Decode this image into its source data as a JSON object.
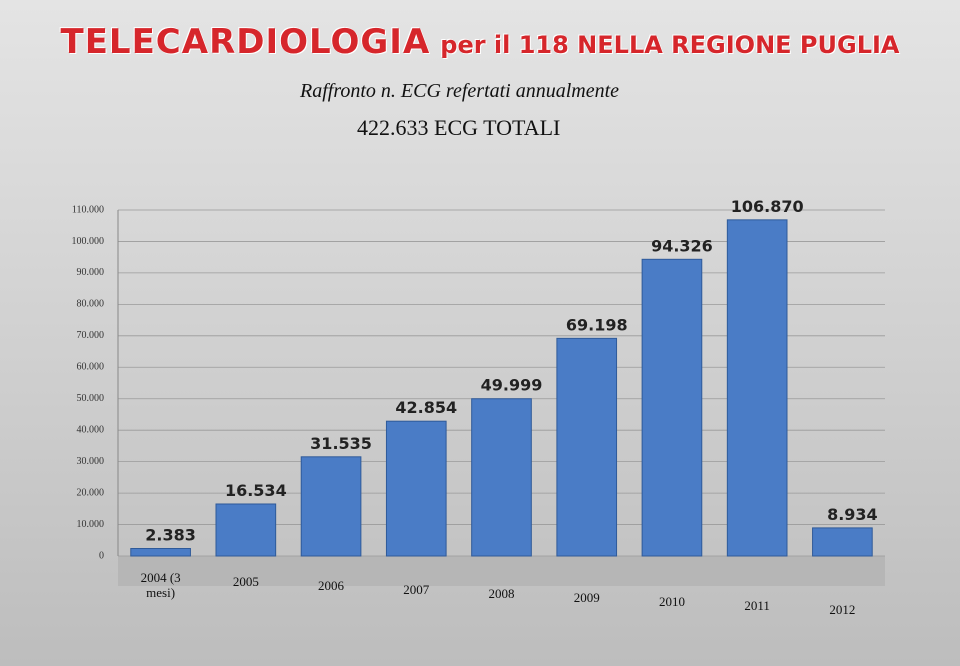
{
  "chart_data": {
    "type": "bar",
    "title": "TELECARDIOLOGIA",
    "title_suffix": "per il 118 NELLA REGIONE PUGLIA",
    "subtitle": "Raffronto n. ECG refertati annualmente",
    "total": "422.633 ECG TOTALI",
    "categories": [
      "2004 (3 mesi)",
      "2005",
      "2006",
      "2007",
      "2008",
      "2009",
      "2010",
      "2011",
      "2012"
    ],
    "values": [
      2383,
      16534,
      31535,
      42854,
      49999,
      69198,
      94326,
      106870,
      8934
    ],
    "value_labels": [
      "2.383",
      "16.534",
      "31.535",
      "42.854",
      "49.999",
      "69.198",
      "94.326",
      "106.870",
      "8.934"
    ],
    "color": "#4a7cc6",
    "ylim": [
      0,
      110000
    ],
    "yticks": [
      0,
      {
        "value": 10000,
        "label": "10.000"
      },
      {
        "value": 20000,
        "label": "20.000"
      },
      {
        "value": 30000,
        "label": "30.000"
      },
      {
        "value": 40000,
        "label": "40.000"
      },
      {
        "value": 50000,
        "label": "50.000"
      },
      {
        "value": 60000,
        "label": "60.000"
      },
      {
        "value": 70000,
        "label": "70.000"
      },
      {
        "value": 80000,
        "label": "80.000"
      },
      {
        "value": 90000,
        "label": "90.000"
      },
      {
        "value": 100000,
        "label": "100.000"
      },
      {
        "value": 110000,
        "label": "110.000"
      }
    ],
    "grid": true
  }
}
